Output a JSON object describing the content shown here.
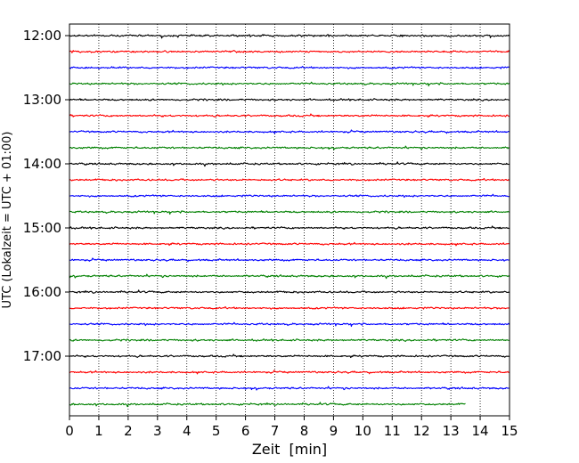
{
  "chart_data": {
    "type": "line",
    "title": "",
    "xlabel": "Zeit  [min]",
    "ylabel": "UTC (Lokalzeit = UTC + 01:00)",
    "xlim": [
      0,
      15
    ],
    "x_ticks": [
      "0",
      "1",
      "2",
      "3",
      "4",
      "5",
      "6",
      "7",
      "8",
      "9",
      "10",
      "11",
      "12",
      "13",
      "14",
      "15"
    ],
    "y_tick_labels": [
      "12:00",
      "13:00",
      "14:00",
      "15:00",
      "16:00",
      "17:00"
    ],
    "grid": "vertical-dotted",
    "trace_interval_min": 15,
    "trace_start": "12:00",
    "last_trace_end_min": 13.5,
    "colors": [
      "#000000",
      "#ff0000",
      "#0000ff",
      "#008000"
    ],
    "traces": [
      {
        "start": "12:00",
        "color_index": 0
      },
      {
        "start": "12:15",
        "color_index": 1
      },
      {
        "start": "12:30",
        "color_index": 2
      },
      {
        "start": "12:45",
        "color_index": 3
      },
      {
        "start": "13:00",
        "color_index": 0
      },
      {
        "start": "13:15",
        "color_index": 1
      },
      {
        "start": "13:30",
        "color_index": 2
      },
      {
        "start": "13:45",
        "color_index": 3
      },
      {
        "start": "14:00",
        "color_index": 0
      },
      {
        "start": "14:15",
        "color_index": 1
      },
      {
        "start": "14:30",
        "color_index": 2
      },
      {
        "start": "14:45",
        "color_index": 3
      },
      {
        "start": "15:00",
        "color_index": 0
      },
      {
        "start": "15:15",
        "color_index": 1
      },
      {
        "start": "15:30",
        "color_index": 2
      },
      {
        "start": "15:45",
        "color_index": 3
      },
      {
        "start": "16:00",
        "color_index": 0
      },
      {
        "start": "16:15",
        "color_index": 1
      },
      {
        "start": "16:30",
        "color_index": 2
      },
      {
        "start": "16:45",
        "color_index": 3
      },
      {
        "start": "17:00",
        "color_index": 0
      },
      {
        "start": "17:15",
        "color_index": 1
      },
      {
        "start": "17:30",
        "color_index": 2
      },
      {
        "start": "17:45",
        "color_index": 3
      }
    ]
  }
}
